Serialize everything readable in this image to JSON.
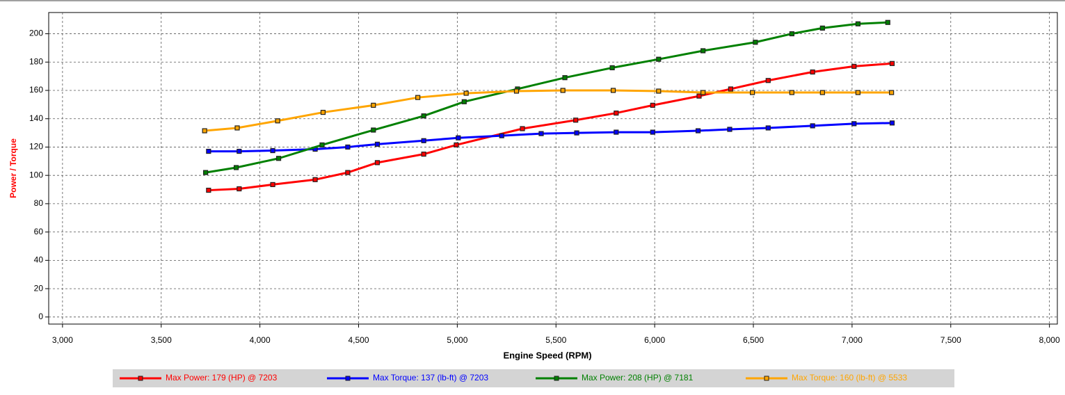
{
  "chart_data": {
    "type": "line",
    "x_label": "Engine Speed (RPM)",
    "y_label": "Power / Torque",
    "xlim": [
      2930,
      8040
    ],
    "ylim": [
      -5,
      215
    ],
    "xticks": [
      {
        "value": 3000,
        "label": "3,000"
      },
      {
        "value": 3500,
        "label": "3,500"
      },
      {
        "value": 4000,
        "label": "4,000"
      },
      {
        "value": 4500,
        "label": "4,500"
      },
      {
        "value": 5000,
        "label": "5,000"
      },
      {
        "value": 5500,
        "label": "5,500"
      },
      {
        "value": 6000,
        "label": "6,000"
      },
      {
        "value": 6500,
        "label": "6,500"
      },
      {
        "value": 7000,
        "label": "7,000"
      },
      {
        "value": 7500,
        "label": "7,500"
      },
      {
        "value": 8000,
        "label": "8,000"
      }
    ],
    "yticks": [
      0,
      20,
      40,
      60,
      80,
      100,
      120,
      140,
      160,
      180,
      200
    ],
    "grid": true,
    "legend": "bottom",
    "series": [
      {
        "name": "Max Power: 179 (HP) @ 7203",
        "color": "#ff0000",
        "x": [
          3740,
          3895,
          4065,
          4280,
          4445,
          4595,
          4830,
          4995,
          5330,
          5600,
          5805,
          5990,
          6225,
          6385,
          6575,
          6800,
          7010,
          7203
        ],
        "values": [
          89.5,
          90.5,
          93.5,
          97,
          102,
          109,
          115,
          121.5,
          133,
          139,
          144,
          149.5,
          156,
          161,
          167,
          173,
          177,
          179
        ]
      },
      {
        "name": "Max Torque: 137 (lb-ft) @ 7203",
        "color": "#0000ff",
        "x": [
          3740,
          3895,
          4065,
          4280,
          4445,
          4595,
          4830,
          5005,
          5225,
          5425,
          5605,
          5805,
          5990,
          6220,
          6380,
          6575,
          6800,
          7010,
          7203
        ],
        "values": [
          117,
          117,
          117.5,
          118.5,
          120,
          122,
          124.5,
          126.5,
          128,
          129.5,
          130,
          130.5,
          130.5,
          131.5,
          132.5,
          133.5,
          135,
          136.5,
          137
        ]
      },
      {
        "name": "Max Power: 208 (HP) @ 7181",
        "color": "#008000",
        "x": [
          3725,
          3880,
          4095,
          4315,
          4575,
          4830,
          5035,
          5305,
          5545,
          5785,
          6020,
          6245,
          6510,
          6695,
          6850,
          7030,
          7181
        ],
        "values": [
          102,
          105.5,
          112,
          121.5,
          132,
          142,
          152,
          161,
          169,
          176,
          182,
          188,
          194,
          200,
          204,
          207,
          208
        ]
      },
      {
        "name": "Max Torque: 160 (lb-ft) @ 5533",
        "color": "#ffa500",
        "x": [
          3720,
          3885,
          4090,
          4320,
          4575,
          4800,
          5045,
          5300,
          5535,
          5790,
          6020,
          6245,
          6495,
          6695,
          6850,
          7030,
          7200
        ],
        "values": [
          131.5,
          133.5,
          138.5,
          144.5,
          149.5,
          155,
          158,
          159.5,
          160,
          160,
          159.5,
          158.5,
          158.5,
          158.5,
          158.5,
          158.5,
          158.5
        ]
      }
    ]
  }
}
